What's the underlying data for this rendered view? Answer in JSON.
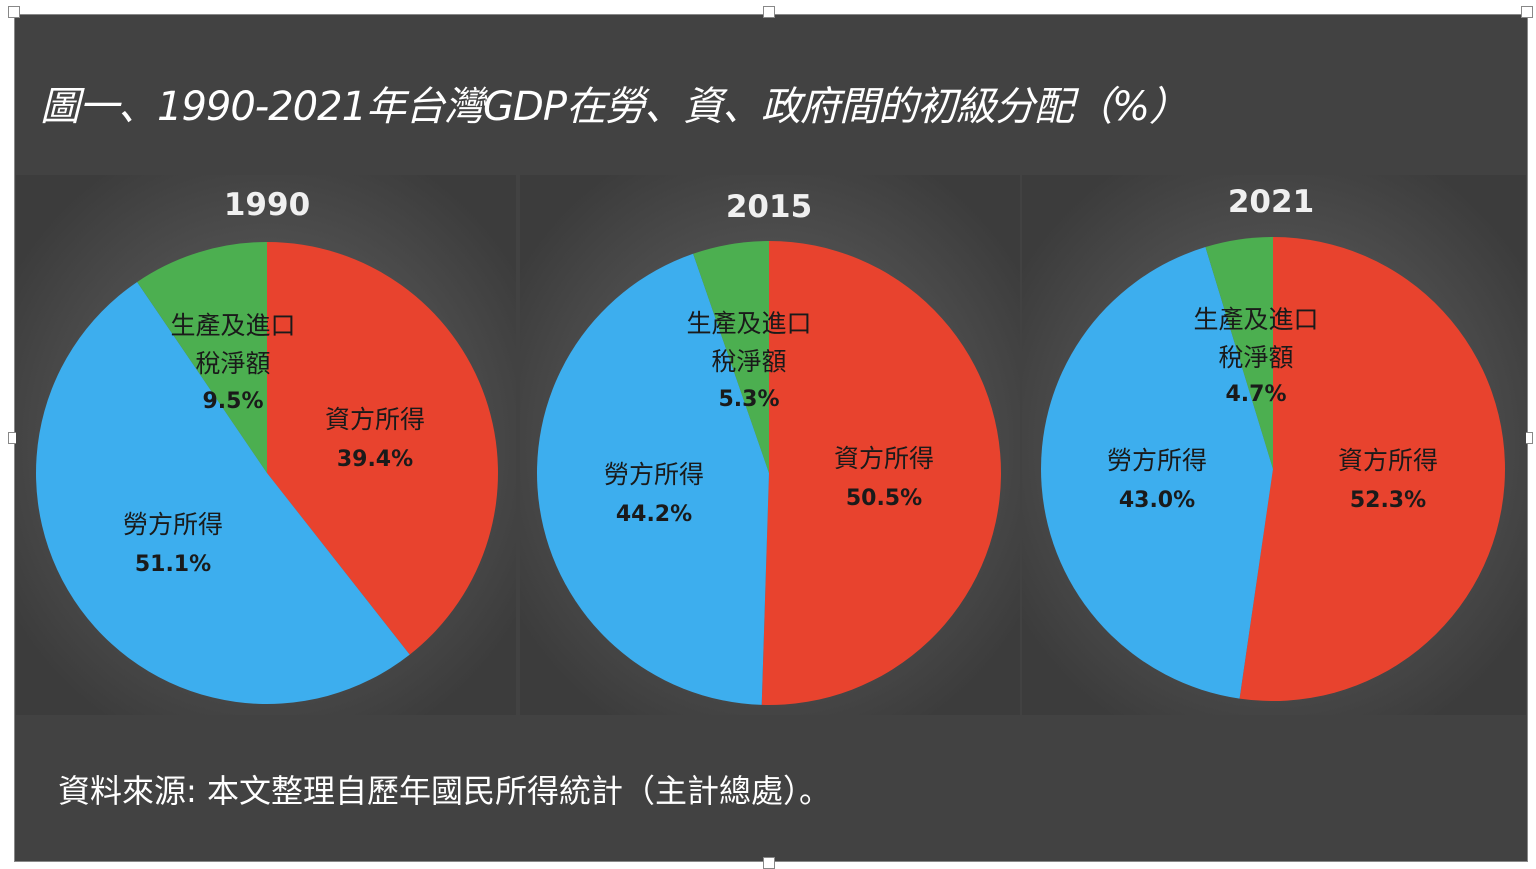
{
  "chart_data": {
    "type": "pie",
    "title": "圖一、1990-2021年台灣GDP在勞、資、政府間的初級分配（%）",
    "source": "資料來源: 本文整理自歷年國民所得統計（主計總處）。",
    "categories": [
      "資方所得",
      "勞方所得",
      "生產及進口稅淨額"
    ],
    "category_lines": [
      [
        "資方所得"
      ],
      [
        "勞方所得"
      ],
      [
        "生產及進口",
        "稅淨額"
      ]
    ],
    "colors": [
      "#E8432E",
      "#3DAEEE",
      "#4CAF50"
    ],
    "pies": [
      {
        "year": "1990",
        "values": [
          39.4,
          51.1,
          9.5
        ],
        "labels": [
          "39.4%",
          "51.1%",
          "9.5%"
        ]
      },
      {
        "year": "2015",
        "values": [
          50.5,
          44.2,
          5.3
        ],
        "labels": [
          "50.5%",
          "44.2%",
          "5.3%"
        ]
      },
      {
        "year": "2021",
        "values": [
          52.3,
          43.0,
          4.7
        ],
        "labels": [
          "52.3%",
          "43.0%",
          "4.7%"
        ]
      }
    ]
  }
}
